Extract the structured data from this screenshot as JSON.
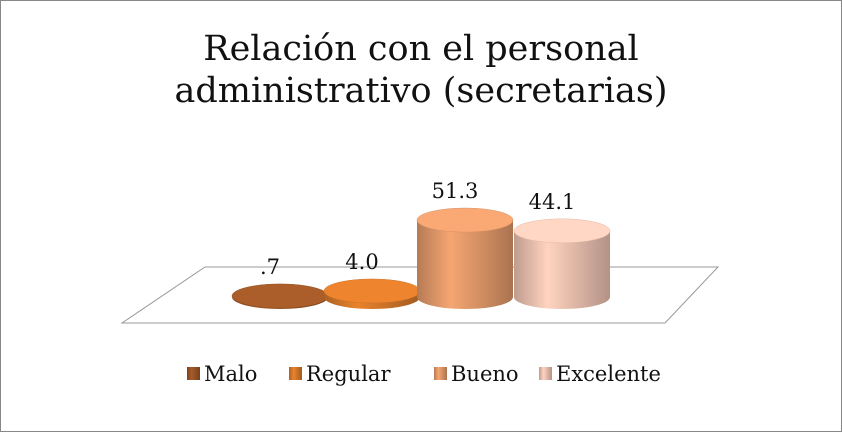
{
  "chart_data": {
    "type": "bar3d",
    "title": "Relación con el personal administrativo (secretarias)",
    "categories": [
      "Malo",
      "Regular",
      "Bueno",
      "Excelente"
    ],
    "values": [
      0.7,
      4.0,
      51.3,
      44.1
    ],
    "value_labels": [
      ".7",
      "4.0",
      "51.3",
      "44.1"
    ],
    "colors": [
      "#9c5526",
      "#d8792a",
      "#e39a6a",
      "#efc3b2"
    ],
    "legend": "bottom"
  }
}
